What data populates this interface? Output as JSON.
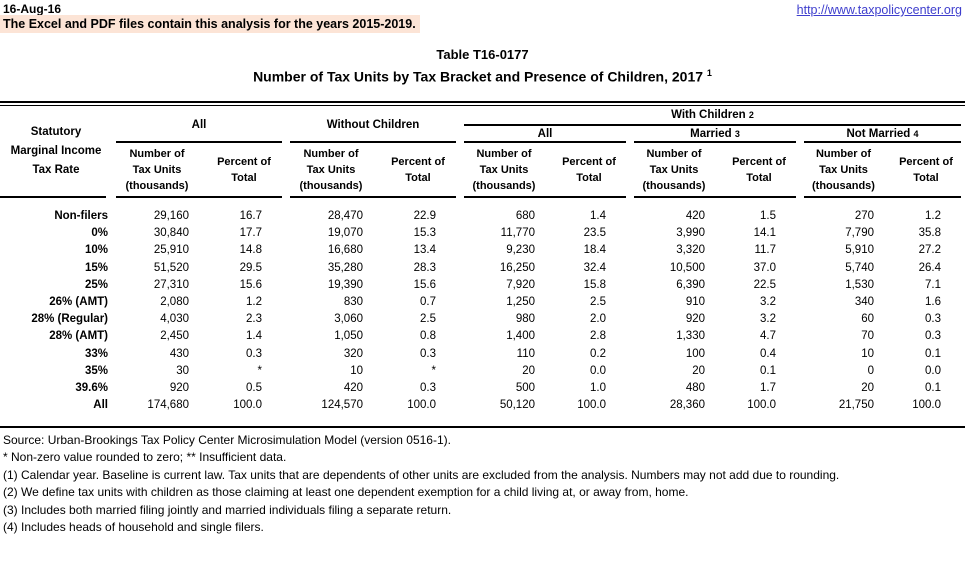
{
  "header": {
    "date": "16-Aug-16",
    "banner": "The Excel and PDF files contain this analysis for the years 2015-2019.",
    "url": "http://www.taxpolicycenter.org"
  },
  "title": {
    "line1": "Table T16-0177",
    "line2": "Number of Tax Units by Tax Bracket and Presence of Children, 2017",
    "superscript": "1"
  },
  "colors": {
    "highlight": "#FCE4D6",
    "link": "#3E3ECD",
    "rule": "#000000"
  },
  "table": {
    "stub_header": "Statutory\nMarginal Income\nTax Rate",
    "col_number": "Number of\nTax Units\n(thousands)",
    "col_percent": "Percent of\nTotal",
    "groups": {
      "all": "All",
      "without_children": "Without Children",
      "with_children": "With Children",
      "with_children_sup": "2",
      "wc_all": "All",
      "married": "Married",
      "married_sup": "3",
      "not_married": "Not Married",
      "not_married_sup": "4"
    },
    "rows": [
      {
        "label": "Non-filers",
        "values": [
          "29,160",
          "16.7",
          "28,470",
          "22.9",
          "680",
          "1.4",
          "420",
          "1.5",
          "270",
          "1.2"
        ]
      },
      {
        "label": "0%",
        "values": [
          "30,840",
          "17.7",
          "19,070",
          "15.3",
          "11,770",
          "23.5",
          "3,990",
          "14.1",
          "7,790",
          "35.8"
        ]
      },
      {
        "label": "10%",
        "values": [
          "25,910",
          "14.8",
          "16,680",
          "13.4",
          "9,230",
          "18.4",
          "3,320",
          "11.7",
          "5,910",
          "27.2"
        ]
      },
      {
        "label": "15%",
        "values": [
          "51,520",
          "29.5",
          "35,280",
          "28.3",
          "16,250",
          "32.4",
          "10,500",
          "37.0",
          "5,740",
          "26.4"
        ]
      },
      {
        "label": "25%",
        "values": [
          "27,310",
          "15.6",
          "19,390",
          "15.6",
          "7,920",
          "15.8",
          "6,390",
          "22.5",
          "1,530",
          "7.1"
        ]
      },
      {
        "label": "26% (AMT)",
        "values": [
          "2,080",
          "1.2",
          "830",
          "0.7",
          "1,250",
          "2.5",
          "910",
          "3.2",
          "340",
          "1.6"
        ]
      },
      {
        "label": "28% (Regular)",
        "values": [
          "4,030",
          "2.3",
          "3,060",
          "2.5",
          "980",
          "2.0",
          "920",
          "3.2",
          "60",
          "0.3"
        ]
      },
      {
        "label": "28% (AMT)",
        "values": [
          "2,450",
          "1.4",
          "1,050",
          "0.8",
          "1,400",
          "2.8",
          "1,330",
          "4.7",
          "70",
          "0.3"
        ]
      },
      {
        "label": "33%",
        "values": [
          "430",
          "0.3",
          "320",
          "0.3",
          "110",
          "0.2",
          "100",
          "0.4",
          "10",
          "0.1"
        ]
      },
      {
        "label": "35%",
        "values": [
          "30",
          "*",
          "10",
          "*",
          "20",
          "0.0",
          "20",
          "0.1",
          "0",
          "0.0"
        ]
      },
      {
        "label": "39.6%",
        "values": [
          "920",
          "0.5",
          "420",
          "0.3",
          "500",
          "1.0",
          "480",
          "1.7",
          "20",
          "0.1"
        ]
      },
      {
        "label": "All",
        "values": [
          "174,680",
          "100.0",
          "124,570",
          "100.0",
          "50,120",
          "100.0",
          "28,360",
          "100.0",
          "21,750",
          "100.0"
        ]
      }
    ]
  },
  "footnotes": [
    "Source: Urban-Brookings Tax Policy Center Microsimulation Model (version 0516-1).",
    "* Non-zero value rounded to zero; ** Insufficient data.",
    "(1) Calendar year. Baseline is current law. Tax units that are dependents of other units are excluded from the analysis. Numbers may not add due to rounding.",
    "(2) We define tax units with children as those claiming at least one dependent exemption for a child living at, or away from, home.",
    "(3) Includes both married filing jointly and married individuals filing a separate return.",
    "(4) Includes heads of household and single filers."
  ]
}
